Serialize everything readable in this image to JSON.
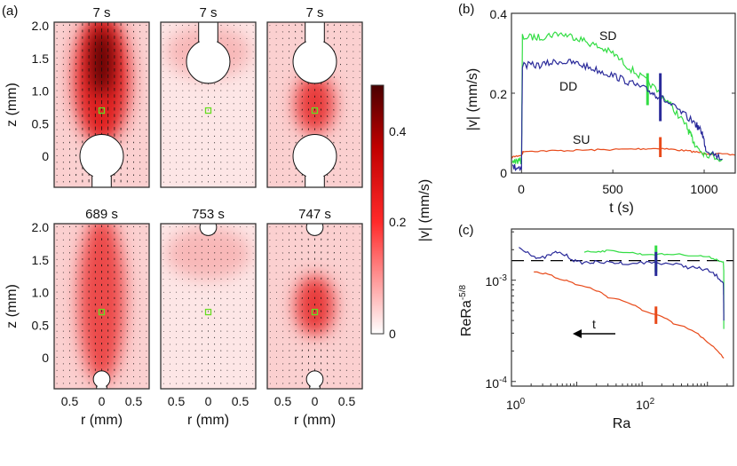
{
  "chart_data": [
    {
      "panel_label": "(a)",
      "type": "heatmap",
      "xlabel": "r (mm)",
      "ylabel": "z (mm)",
      "x_ticks": [
        "0.5",
        "0",
        "0.5"
      ],
      "y_ticks": [
        "2.0",
        "1.5",
        "1.0",
        "0.5",
        "0"
      ],
      "colorbar": {
        "label": "|v| (mm/s)",
        "ticks": [
          "0.4",
          "0.2",
          "0"
        ],
        "range": [
          0,
          0.49
        ],
        "colormap": [
          "#ffffff",
          "#ff2a2a",
          "#c00000",
          "#4a0000"
        ]
      },
      "marker_color": "#66dd22",
      "panels": [
        {
          "title": "7 s",
          "bubbles": [
            "bottom"
          ],
          "peak": 0.49
        },
        {
          "title": "7 s",
          "bubbles": [
            "top"
          ],
          "peak": 0.05
        },
        {
          "title": "7 s",
          "bubbles": [
            "top",
            "bottom"
          ],
          "peak": 0.2
        },
        {
          "title": "689 s",
          "bubbles": [
            "bottom-small"
          ],
          "peak": 0.22
        },
        {
          "title": "753 s",
          "bubbles": [
            "top-small"
          ],
          "peak": 0.06
        },
        {
          "title": "747 s",
          "bubbles": [
            "top-small",
            "bottom-small"
          ],
          "peak": 0.2
        }
      ]
    },
    {
      "panel_label": "(b)",
      "type": "line",
      "xlabel": "t (s)",
      "ylabel": "|v| (mm/s)",
      "xlim": [
        -55,
        1170
      ],
      "ylim": [
        0,
        0.4
      ],
      "x_ticks": [
        "0",
        "500",
        "1000"
      ],
      "y_ticks": [
        "0.4",
        "0.2",
        "0"
      ],
      "series": [
        {
          "name": "SD",
          "color": "#33dd44",
          "x": [
            -50,
            0,
            5,
            100,
            200,
            300,
            400,
            500,
            600,
            700,
            800,
            900,
            930,
            960,
            1000,
            1100
          ],
          "y": [
            0.03,
            0.03,
            0.34,
            0.34,
            0.35,
            0.34,
            0.32,
            0.3,
            0.26,
            0.225,
            0.18,
            0.12,
            0.09,
            0.065,
            0.05,
            0.035
          ],
          "marker": {
            "x": 690,
            "y": [
              0.17,
              0.25
            ]
          }
        },
        {
          "name": "DD",
          "color": "#2a2a9a",
          "x": [
            -50,
            0,
            5,
            100,
            200,
            300,
            400,
            500,
            600,
            700,
            760,
            850,
            950,
            990,
            1010,
            1100
          ],
          "y": [
            0.015,
            0.015,
            0.27,
            0.27,
            0.28,
            0.275,
            0.26,
            0.245,
            0.225,
            0.205,
            0.19,
            0.16,
            0.125,
            0.1,
            0.06,
            0.035
          ],
          "marker": {
            "x": 760,
            "y": [
              0.13,
              0.25
            ]
          }
        },
        {
          "name": "SU",
          "color": "#e84a1a",
          "x": [
            -55,
            0,
            10,
            200,
            400,
            600,
            760,
            900,
            1000,
            1170
          ],
          "y": [
            0.04,
            0.045,
            0.055,
            0.056,
            0.058,
            0.06,
            0.062,
            0.056,
            0.05,
            0.045
          ],
          "marker": {
            "x": 760,
            "y": [
              0.04,
              0.09
            ]
          }
        }
      ]
    },
    {
      "panel_label": "(c)",
      "type": "line",
      "xlabel": "Ra",
      "ylabel": "ReRa",
      "ylabel_sup": "-5/8",
      "xscale": "log",
      "yscale": "log",
      "xlim": [
        1,
        2500
      ],
      "ylim": [
        9e-05,
        0.0032
      ],
      "x_ticks": [
        {
          "base": "10",
          "exp": "0"
        },
        {
          "base": "10",
          "exp": "2"
        }
      ],
      "y_ticks": [
        {
          "base": "10",
          "exp": "-3"
        },
        {
          "base": "10",
          "exp": "-4"
        }
      ],
      "reference_line": 0.00156,
      "annotation": {
        "text": "t",
        "arrow": "left"
      },
      "series": [
        {
          "name": "SD",
          "color": "#33dd44",
          "x": [
            13,
            30,
            100,
            300,
            1000,
            1750,
            1780,
            1780
          ],
          "y": [
            0.0019,
            0.00195,
            0.0018,
            0.0018,
            0.0017,
            0.0015,
            0.0012,
            0.00033
          ],
          "marker": {
            "x": 163,
            "y": [
              0.0012,
              0.0022
            ]
          }
        },
        {
          "name": "DD",
          "color": "#2a2a9a",
          "x": [
            1.3,
            2.5,
            5,
            10,
            20,
            50,
            163,
            500,
            1000,
            1750,
            1780
          ],
          "y": [
            0.0021,
            0.0016,
            0.0019,
            0.0015,
            0.0015,
            0.00148,
            0.0015,
            0.00135,
            0.00125,
            0.00095,
            0.0004
          ],
          "marker": {
            "x": 163,
            "y": [
              0.0011,
              0.0019
            ]
          }
        },
        {
          "name": "SU",
          "color": "#e84a1a",
          "x": [
            2.2,
            5,
            10,
            30,
            100,
            300,
            1000,
            1780
          ],
          "y": [
            0.00122,
            0.00105,
            0.0009,
            0.00068,
            0.0005,
            0.00037,
            0.00024,
            0.00017
          ],
          "marker": {
            "x": 163,
            "y": [
              0.00037,
              0.00055
            ]
          }
        }
      ]
    }
  ]
}
